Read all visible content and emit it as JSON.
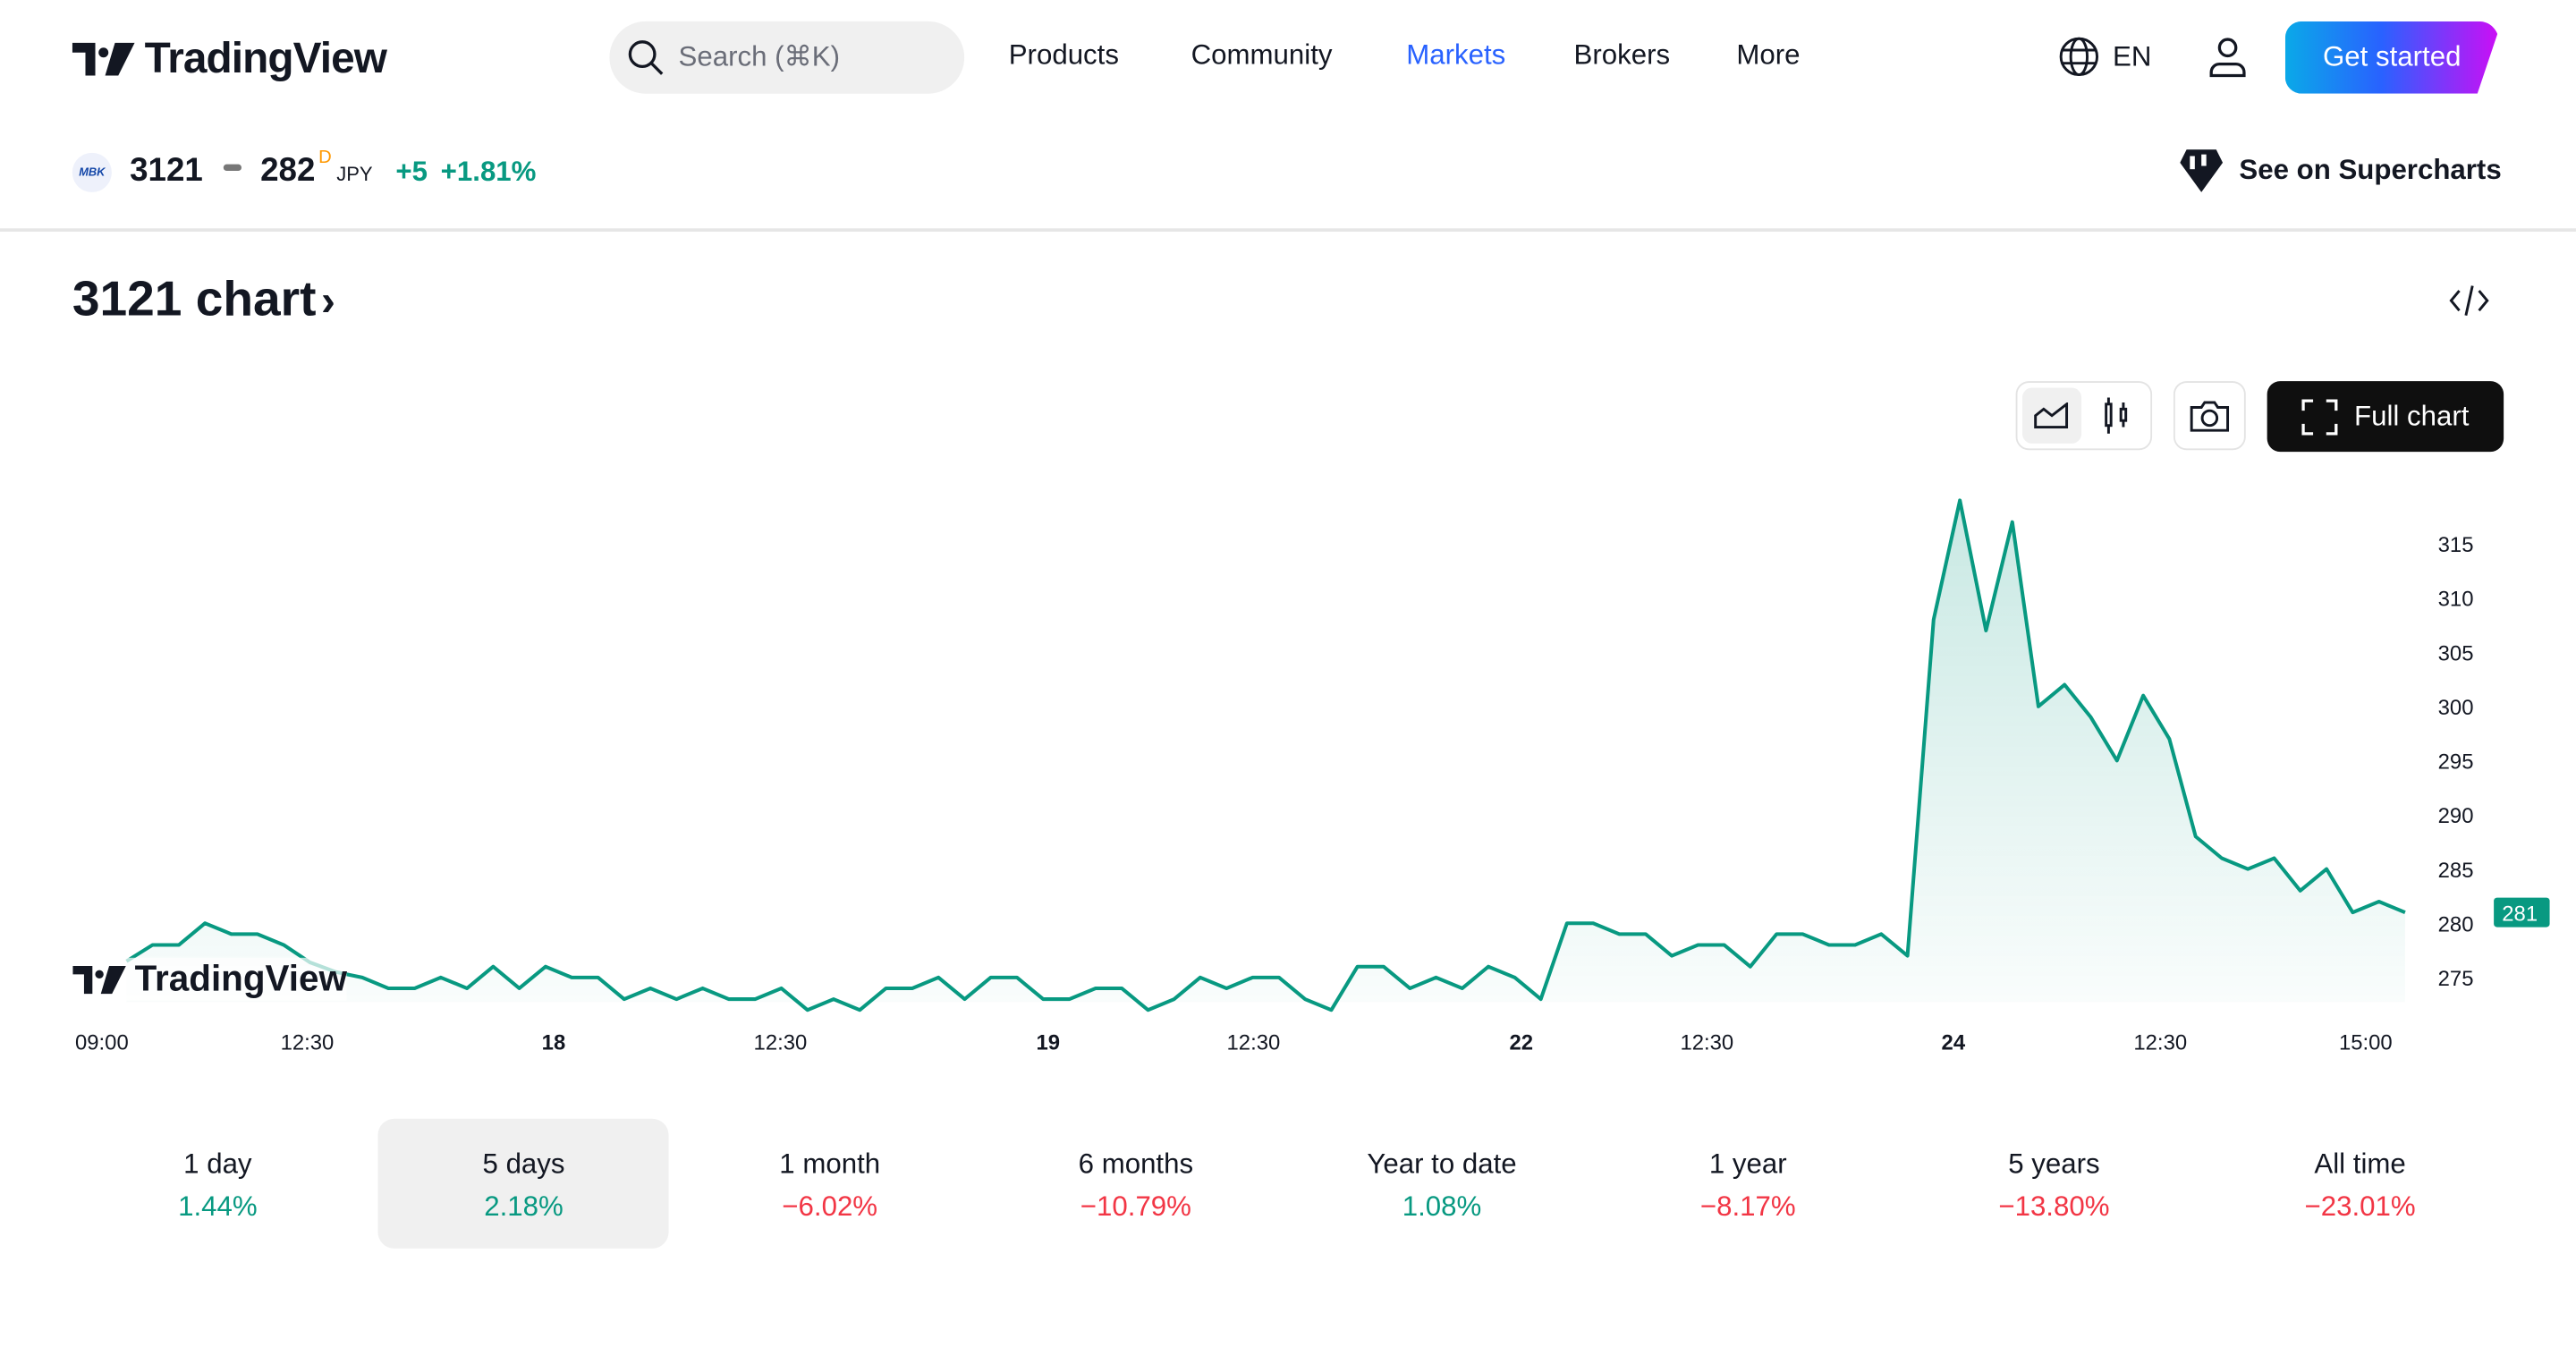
{
  "header": {
    "brand": "TradingView",
    "search_placeholder": "Search (⌘K)",
    "nav": [
      "Products",
      "Community",
      "Markets",
      "Brokers",
      "More"
    ],
    "active_nav": "Markets",
    "language": "EN",
    "get_started": "Get started",
    "icons": [
      "tradingview-logo",
      "search-icon",
      "globe-icon",
      "user-icon"
    ]
  },
  "symbol": {
    "logo_text": "MBK",
    "ticker": "3121",
    "price": "282",
    "flag": "D",
    "currency": "JPY",
    "change": "+5",
    "change_pct": "+1.81%",
    "supercharts": "See on Supercharts"
  },
  "chart_title": "3121 chart",
  "toolbar": {
    "full_chart": "Full chart",
    "icons": [
      "area-chart-icon",
      "candles-icon",
      "camera-icon",
      "fullscreen-icon",
      "embed-code-icon"
    ],
    "selected": "area-chart-icon"
  },
  "colors": {
    "accent": "#2962ff",
    "positive": "#089981",
    "negative": "#f23645",
    "line": "#089981"
  },
  "chart_data": {
    "type": "area",
    "y_ticks": [
      275,
      280,
      285,
      290,
      295,
      300,
      305,
      310,
      315
    ],
    "ylim": [
      272,
      319
    ],
    "x_ticks": [
      {
        "label": "09:00",
        "bold": false
      },
      {
        "label": "12:30",
        "bold": false
      },
      {
        "label": "18",
        "bold": true
      },
      {
        "label": "12:30",
        "bold": false
      },
      {
        "label": "19",
        "bold": true
      },
      {
        "label": "12:30",
        "bold": false
      },
      {
        "label": "22",
        "bold": true
      },
      {
        "label": "12:30",
        "bold": false
      },
      {
        "label": "24",
        "bold": true
      },
      {
        "label": "12:30",
        "bold": false
      },
      {
        "label": "15:00",
        "bold": false
      }
    ],
    "last_price": "281",
    "values": [
      276.5,
      278,
      278,
      280,
      279,
      279,
      278,
      276.4,
      275.5,
      275,
      274,
      274,
      275,
      274,
      276,
      274,
      276,
      275,
      275,
      273,
      274,
      273,
      274,
      273,
      273,
      274,
      272,
      273,
      272,
      274,
      274,
      275,
      273,
      275,
      275,
      273,
      273,
      274,
      274,
      272,
      273,
      275,
      274,
      275,
      275,
      273,
      272,
      276,
      276,
      274,
      275,
      274,
      276,
      275,
      273,
      280,
      280,
      279,
      279,
      277,
      278,
      278,
      276,
      279,
      279,
      278,
      278,
      279,
      277,
      308,
      319,
      307,
      317,
      300,
      302,
      299,
      295,
      301,
      297,
      288,
      286,
      285,
      286,
      283,
      285,
      281,
      282,
      281
    ],
    "watermark": "TradingView"
  },
  "periods": [
    {
      "label": "1 day",
      "value": "1.44%",
      "dir": "pos"
    },
    {
      "label": "5 days",
      "value": "2.18%",
      "dir": "pos",
      "selected": true
    },
    {
      "label": "1 month",
      "value": "−6.02%",
      "dir": "neg"
    },
    {
      "label": "6 months",
      "value": "−10.79%",
      "dir": "neg"
    },
    {
      "label": "Year to date",
      "value": "1.08%",
      "dir": "pos"
    },
    {
      "label": "1 year",
      "value": "−8.17%",
      "dir": "neg"
    },
    {
      "label": "5 years",
      "value": "−13.80%",
      "dir": "neg"
    },
    {
      "label": "All time",
      "value": "−23.01%",
      "dir": "neg"
    }
  ]
}
